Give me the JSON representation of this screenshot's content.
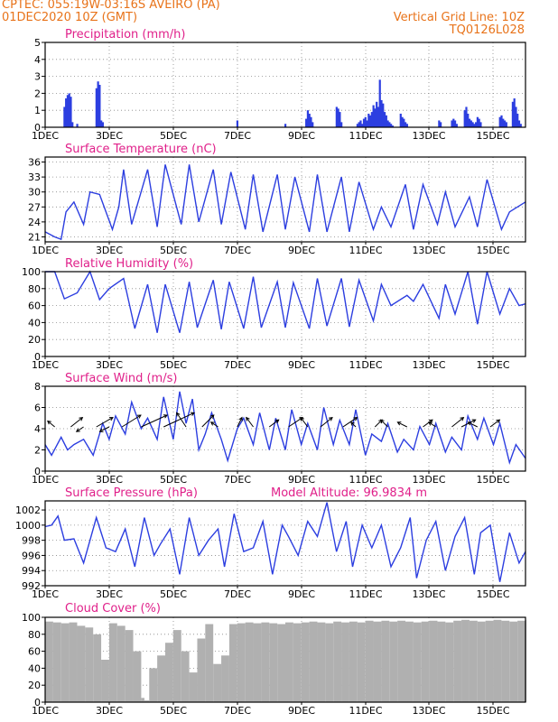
{
  "header": {
    "line1_left": "CPTEC:   055:19W-03:16S   AVEIRO (PA)",
    "line2_left": "01DEC2020 10Z (GMT)",
    "line1_right": "Vertical Grid Line: 10Z",
    "line2_right": "TQ0126L028"
  },
  "colors": {
    "header": "#e8731a",
    "title": "#e0208a",
    "line": "#2c3ee0",
    "cloud": "#b0b0b0",
    "arrow": "#000000"
  },
  "chart_data": [
    {
      "type": "bar",
      "title": "Precipitation (mm/h)",
      "ylim": [
        0,
        5
      ],
      "yticks": [
        "0",
        "1",
        "2",
        "3",
        "4",
        "5"
      ],
      "xticks": [
        "1DEC",
        "3DEC",
        "5DEC",
        "7DEC",
        "9DEC",
        "11DEC",
        "13DEC",
        "15DEC"
      ],
      "x": [
        1.6,
        1.65,
        1.7,
        1.75,
        1.8,
        1.85,
        2.0,
        2.6,
        2.65,
        2.7,
        2.75,
        2.8,
        7.0,
        8.5,
        9.15,
        9.2,
        9.25,
        9.3,
        9.35,
        10.1,
        10.15,
        10.2,
        10.25,
        10.75,
        10.8,
        10.85,
        10.9,
        10.95,
        11.0,
        11.05,
        11.1,
        11.15,
        11.2,
        11.25,
        11.3,
        11.35,
        11.4,
        11.45,
        11.5,
        11.55,
        11.6,
        11.65,
        11.7,
        11.75,
        11.8,
        11.85,
        12.1,
        12.15,
        12.2,
        12.25,
        12.3,
        13.3,
        13.35,
        13.7,
        13.75,
        13.8,
        13.85,
        14.1,
        14.15,
        14.2,
        14.25,
        14.3,
        14.35,
        14.4,
        14.45,
        14.5,
        14.55,
        14.6,
        15.2,
        15.25,
        15.3,
        15.35,
        15.4,
        15.6,
        15.65,
        15.7,
        15.75,
        15.8,
        15.85
      ],
      "values": [
        1.2,
        1.7,
        1.9,
        2.0,
        1.8,
        0.3,
        0.2,
        2.3,
        2.7,
        2.5,
        0.4,
        0.3,
        0.4,
        0.2,
        0.5,
        1.0,
        0.8,
        0.6,
        0.3,
        1.2,
        1.1,
        0.9,
        0.3,
        0.2,
        0.3,
        0.4,
        0.2,
        0.5,
        0.6,
        0.4,
        0.8,
        0.7,
        0.9,
        1.3,
        1.1,
        1.5,
        1.2,
        2.8,
        1.6,
        1.4,
        0.9,
        0.7,
        0.4,
        0.3,
        0.2,
        0.1,
        0.8,
        0.6,
        0.5,
        0.3,
        0.2,
        0.4,
        0.3,
        0.4,
        0.5,
        0.4,
        0.2,
        1.0,
        1.2,
        0.8,
        0.5,
        0.4,
        0.3,
        0.2,
        0.3,
        0.6,
        0.5,
        0.3,
        0.6,
        0.7,
        0.5,
        0.4,
        0.3,
        1.5,
        1.7,
        1.2,
        0.8,
        0.4,
        0.2
      ]
    },
    {
      "type": "line",
      "title": "Surface Temperature (nC)",
      "ylim": [
        20,
        37
      ],
      "yticks": [
        "21",
        "24",
        "27",
        "30",
        "33",
        "36"
      ],
      "xticks": [
        "1DEC",
        "3DEC",
        "5DEC",
        "7DEC",
        "9DEC",
        "11DEC",
        "13DEC",
        "15DEC"
      ],
      "x": [
        1.0,
        1.3,
        1.5,
        1.65,
        1.9,
        2.2,
        2.4,
        2.7,
        3.1,
        3.3,
        3.45,
        3.7,
        4.2,
        4.5,
        4.75,
        5.25,
        5.5,
        5.8,
        6.25,
        6.5,
        6.8,
        7.25,
        7.5,
        7.8,
        8.25,
        8.5,
        8.8,
        9.25,
        9.5,
        9.8,
        10.25,
        10.5,
        10.8,
        11.25,
        11.5,
        11.8,
        12.25,
        12.5,
        12.8,
        13.25,
        13.5,
        13.8,
        14.25,
        14.5,
        14.8,
        15.25,
        15.5,
        15.75,
        16.0
      ],
      "values": [
        22.0,
        21.0,
        20.5,
        26.0,
        28.0,
        23.5,
        30.0,
        29.5,
        22.5,
        27.0,
        34.5,
        23.5,
        34.5,
        23.0,
        35.5,
        23.5,
        35.5,
        24.0,
        34.5,
        23.5,
        34.0,
        22.5,
        33.5,
        22.0,
        33.5,
        22.5,
        33.0,
        22.0,
        33.5,
        22.0,
        33.0,
        22.0,
        32.0,
        22.5,
        27.0,
        23.0,
        31.5,
        22.5,
        31.5,
        23.5,
        30.0,
        23.0,
        29.0,
        23.0,
        32.5,
        22.5,
        26.0,
        27.0,
        28.0
      ]
    },
    {
      "type": "line",
      "title": "Relative Humidity (%)",
      "ylim": [
        0,
        100
      ],
      "yticks": [
        "0",
        "20",
        "40",
        "60",
        "80",
        "100"
      ],
      "xticks": [
        "1DEC",
        "3DEC",
        "5DEC",
        "7DEC",
        "9DEC",
        "11DEC",
        "13DEC",
        "15DEC"
      ],
      "x": [
        1.0,
        1.3,
        1.6,
        2.0,
        2.4,
        2.7,
        3.0,
        3.45,
        3.8,
        4.2,
        4.5,
        4.75,
        5.2,
        5.5,
        5.75,
        6.25,
        6.5,
        6.75,
        7.2,
        7.5,
        7.75,
        8.25,
        8.5,
        8.75,
        9.25,
        9.5,
        9.8,
        10.25,
        10.5,
        10.8,
        11.25,
        11.5,
        11.8,
        12.3,
        12.5,
        12.8,
        13.3,
        13.5,
        13.8,
        14.2,
        14.5,
        14.8,
        15.2,
        15.5,
        15.8,
        16.0
      ],
      "values": [
        100,
        100,
        68,
        75,
        100,
        67,
        80,
        92,
        33,
        85,
        28,
        85,
        28,
        88,
        34,
        90,
        32,
        88,
        33,
        94,
        34,
        88,
        34,
        87,
        33,
        92,
        36,
        92,
        35,
        90,
        42,
        85,
        60,
        72,
        65,
        85,
        45,
        85,
        50,
        100,
        38,
        100,
        50,
        80,
        60,
        62
      ]
    },
    {
      "type": "line",
      "title": "Surface Wind (m/s)",
      "ylim": [
        0,
        8
      ],
      "yticks": [
        "0",
        "2",
        "4",
        "6",
        "8"
      ],
      "xticks": [
        "1DEC",
        "3DEC",
        "5DEC",
        "7DEC",
        "9DEC",
        "11DEC",
        "13DEC",
        "15DEC"
      ],
      "x": [
        1.0,
        1.2,
        1.5,
        1.7,
        1.9,
        2.2,
        2.5,
        2.8,
        3.0,
        3.2,
        3.5,
        3.7,
        4.0,
        4.2,
        4.5,
        4.7,
        5.0,
        5.2,
        5.4,
        5.6,
        5.8,
        6.0,
        6.2,
        6.5,
        6.7,
        7.0,
        7.2,
        7.5,
        7.7,
        8.0,
        8.2,
        8.5,
        8.7,
        9.0,
        9.2,
        9.5,
        9.7,
        10.0,
        10.2,
        10.5,
        10.7,
        11.0,
        11.2,
        11.5,
        11.7,
        12.0,
        12.2,
        12.5,
        12.7,
        13.0,
        13.2,
        13.5,
        13.7,
        14.0,
        14.2,
        14.5,
        14.7,
        15.0,
        15.2,
        15.5,
        15.7,
        16.0
      ],
      "values": [
        2.5,
        1.5,
        3.2,
        2.0,
        2.5,
        3.0,
        1.5,
        4.5,
        3.0,
        5.2,
        3.5,
        6.5,
        4.0,
        5.0,
        3.0,
        7.0,
        3.0,
        7.5,
        4.5,
        6.8,
        2.0,
        3.5,
        5.5,
        3.0,
        1.0,
        4.0,
        5.0,
        2.5,
        5.5,
        2.0,
        5.0,
        2.0,
        5.8,
        2.5,
        4.5,
        2.0,
        6.0,
        2.5,
        4.8,
        2.5,
        5.8,
        1.5,
        3.5,
        2.8,
        4.5,
        1.8,
        3.0,
        2.0,
        4.2,
        2.5,
        4.5,
        1.8,
        3.2,
        2.0,
        5.2,
        3.0,
        5.0,
        2.5,
        4.5,
        0.8,
        2.5,
        1.2
      ],
      "arrows": [
        {
          "x": 1.3,
          "u": -0.3,
          "v": 0.25
        },
        {
          "x": 1.8,
          "u": 0.5,
          "v": 0.4
        },
        {
          "x": 2.2,
          "u": -0.3,
          "v": -0.2
        },
        {
          "x": 2.6,
          "u": 0.7,
          "v": 0.4
        },
        {
          "x": 3.0,
          "u": -0.4,
          "v": -0.2
        },
        {
          "x": 3.4,
          "u": 0.8,
          "v": 0.5
        },
        {
          "x": 4.0,
          "u": 1.1,
          "v": 0.5
        },
        {
          "x": 4.7,
          "u": 1.3,
          "v": 0.6
        },
        {
          "x": 5.4,
          "u": -0.4,
          "v": 0.6
        },
        {
          "x": 5.9,
          "u": 0.5,
          "v": 0.5
        },
        {
          "x": 6.4,
          "u": -0.3,
          "v": 0.2
        },
        {
          "x": 7.0,
          "u": 0.2,
          "v": 0.4
        },
        {
          "x": 7.5,
          "u": -0.3,
          "v": 0.4
        },
        {
          "x": 8.0,
          "u": 0.4,
          "v": 0.3
        },
        {
          "x": 8.6,
          "u": 0.6,
          "v": 0.4
        },
        {
          "x": 9.2,
          "u": -0.3,
          "v": 0.4
        },
        {
          "x": 9.6,
          "u": 0.5,
          "v": 0.4
        },
        {
          "x": 10.3,
          "u": 0.6,
          "v": 0.4
        },
        {
          "x": 10.7,
          "u": -0.2,
          "v": 0.2
        },
        {
          "x": 11.3,
          "u": 0.3,
          "v": 0.3
        },
        {
          "x": 11.7,
          "u": -0.3,
          "v": 0.3
        },
        {
          "x": 12.3,
          "u": -0.4,
          "v": 0.2
        },
        {
          "x": 12.8,
          "u": 0.4,
          "v": 0.3
        },
        {
          "x": 13.2,
          "u": -0.3,
          "v": 0.2
        },
        {
          "x": 13.7,
          "u": 0.5,
          "v": 0.4
        },
        {
          "x": 14.0,
          "u": 0.6,
          "v": 0.3
        },
        {
          "x": 14.5,
          "u": -0.4,
          "v": 0.2
        },
        {
          "x": 14.9,
          "u": 0.4,
          "v": 0.3
        }
      ]
    },
    {
      "type": "line",
      "title": "Surface Pressure (hPa)",
      "annotation": "Model Altitude: 96.9834 m",
      "ylim": [
        992,
        1003.2
      ],
      "yticks": [
        "992",
        "994",
        "996",
        "998",
        "1000",
        "1002"
      ],
      "xticks": [
        "1DEC",
        "3DEC",
        "5DEC",
        "7DEC",
        "9DEC",
        "11DEC",
        "13DEC",
        "15DEC"
      ],
      "x": [
        1.0,
        1.2,
        1.4,
        1.6,
        1.9,
        2.2,
        2.4,
        2.6,
        2.9,
        3.2,
        3.5,
        3.8,
        4.1,
        4.4,
        4.6,
        4.9,
        5.2,
        5.5,
        5.8,
        6.1,
        6.4,
        6.6,
        6.9,
        7.2,
        7.5,
        7.8,
        8.1,
        8.4,
        8.6,
        8.9,
        9.2,
        9.5,
        9.8,
        10.1,
        10.4,
        10.6,
        10.9,
        11.2,
        11.5,
        11.8,
        12.1,
        12.4,
        12.6,
        12.9,
        13.2,
        13.5,
        13.8,
        14.1,
        14.4,
        14.6,
        14.9,
        15.2,
        15.5,
        15.8,
        16.0
      ],
      "values": [
        999.8,
        1000.0,
        1001.2,
        998.0,
        998.2,
        995.0,
        998.0,
        1001.0,
        997.0,
        996.5,
        999.5,
        994.5,
        1001.0,
        996.0,
        997.5,
        999.5,
        993.5,
        1001.0,
        996.0,
        998.0,
        999.5,
        994.5,
        1001.5,
        996.5,
        997.0,
        1000.5,
        993.5,
        1000.0,
        998.5,
        996.0,
        1000.5,
        998.5,
        1003.0,
        996.5,
        1000.5,
        994.5,
        1000.0,
        997.0,
        1000.0,
        994.5,
        997.0,
        1001.0,
        993.0,
        998.0,
        1000.5,
        994.0,
        998.5,
        1001.0,
        993.5,
        999.0,
        1000.0,
        992.5,
        999.0,
        995.0,
        996.5
      ]
    },
    {
      "type": "bar",
      "title": "Cloud Cover (%)",
      "ylim": [
        0,
        100
      ],
      "yticks": [
        "0",
        "20",
        "40",
        "60",
        "80",
        "100"
      ],
      "xticks": [
        "1DEC",
        "3DEC",
        "5DEC",
        "7DEC",
        "9DEC",
        "11DEC",
        "13DEC",
        "15DEC"
      ],
      "x": [
        1.0,
        1.25,
        1.5,
        1.75,
        2.0,
        2.25,
        2.5,
        2.75,
        3.0,
        3.25,
        3.5,
        3.75,
        4.0,
        4.1,
        4.25,
        4.5,
        4.75,
        5.0,
        5.25,
        5.5,
        5.75,
        6.0,
        6.25,
        6.5,
        6.75,
        7.0,
        7.25,
        7.5,
        7.75,
        8.0,
        8.25,
        8.5,
        8.75,
        9.0,
        9.25,
        9.5,
        9.75,
        10.0,
        10.25,
        10.5,
        10.75,
        11.0,
        11.25,
        11.5,
        11.75,
        12.0,
        12.25,
        12.5,
        12.75,
        13.0,
        13.25,
        13.5,
        13.75,
        14.0,
        14.25,
        14.5,
        14.75,
        15.0,
        15.25,
        15.5,
        15.75,
        16.0
      ],
      "values": [
        95,
        94,
        93,
        94,
        90,
        88,
        80,
        50,
        93,
        90,
        85,
        60,
        5,
        2,
        40,
        55,
        70,
        85,
        60,
        35,
        75,
        92,
        45,
        55,
        92,
        93,
        94,
        93,
        94,
        93,
        92,
        94,
        93,
        94,
        95,
        94,
        93,
        95,
        94,
        95,
        94,
        96,
        95,
        96,
        95,
        96,
        95,
        94,
        95,
        96,
        95,
        94,
        96,
        97,
        96,
        95,
        96,
        97,
        96,
        95,
        96,
        97
      ]
    }
  ]
}
